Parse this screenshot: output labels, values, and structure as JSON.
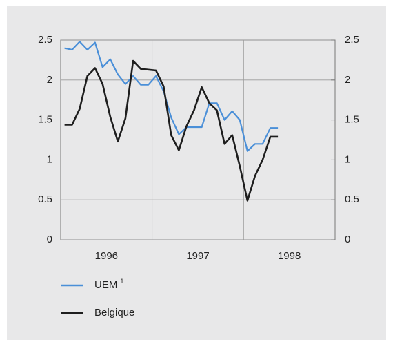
{
  "chart_data": {
    "type": "line",
    "x": [
      1996.042,
      1996.125,
      1996.208,
      1996.292,
      1996.375,
      1996.458,
      1996.542,
      1996.625,
      1996.708,
      1996.792,
      1996.875,
      1996.958,
      1997.042,
      1997.125,
      1997.208,
      1997.292,
      1997.375,
      1997.458,
      1997.542,
      1997.625,
      1997.708,
      1997.792,
      1997.875,
      1997.958,
      1998.042,
      1998.125,
      1998.208,
      1998.292,
      1998.375
    ],
    "series": [
      {
        "name": "UEM",
        "color": "#4a8fd8",
        "values": [
          2.4,
          2.38,
          2.48,
          2.38,
          2.47,
          2.16,
          2.26,
          2.07,
          1.95,
          2.05,
          1.94,
          1.94,
          2.05,
          1.86,
          1.53,
          1.32,
          1.41,
          1.41,
          1.41,
          1.71,
          1.71,
          1.5,
          1.61,
          1.5,
          1.11,
          1.2,
          1.2,
          1.4,
          1.4
        ]
      },
      {
        "name": "Belgique",
        "color": "#1e1e1e",
        "values": [
          1.44,
          1.44,
          1.64,
          2.05,
          2.15,
          1.95,
          1.54,
          1.23,
          1.52,
          2.24,
          2.14,
          2.13,
          2.12,
          1.92,
          1.31,
          1.12,
          1.42,
          1.62,
          1.91,
          1.71,
          1.62,
          1.2,
          1.31,
          0.92,
          0.49,
          0.8,
          1.0,
          1.29,
          1.29
        ]
      }
    ],
    "legend_footnote": "1",
    "xlim": [
      1996,
      1999
    ],
    "xticks": [
      {
        "value": 1996.5,
        "label": "1996"
      },
      {
        "value": 1997.5,
        "label": "1997"
      },
      {
        "value": 1998.5,
        "label": "1998"
      }
    ],
    "xgrid": [
      1997,
      1998
    ],
    "ylim": [
      0,
      2.5
    ],
    "yticks": [
      0,
      0.5,
      1,
      1.5,
      2,
      2.5
    ],
    "y2lim": [
      0,
      2.5
    ],
    "y2ticks": [
      0,
      0.5,
      1,
      1.5,
      2,
      2.5
    ],
    "grid": true,
    "legend": "bottom-left"
  }
}
